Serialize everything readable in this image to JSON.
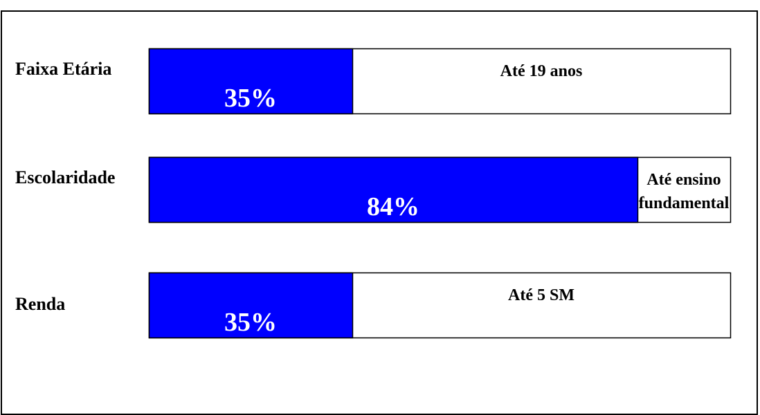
{
  "chart_data": {
    "type": "bar",
    "orientation": "horizontal",
    "stacked": "percent",
    "fill_color": "#0000ff",
    "remainder_color": "#ffffff",
    "xlim": [
      0,
      100
    ],
    "grid": false,
    "categories": [
      "Faixa Etária",
      "Escolaridade",
      "Renda"
    ],
    "values": [
      35,
      84,
      35
    ],
    "value_labels": [
      "35%",
      "84%",
      "35%"
    ],
    "descriptions": [
      [
        "Até 19 anos"
      ],
      [
        "Até ensino",
        "fundamental"
      ],
      [
        "Até 5 SM"
      ]
    ]
  }
}
